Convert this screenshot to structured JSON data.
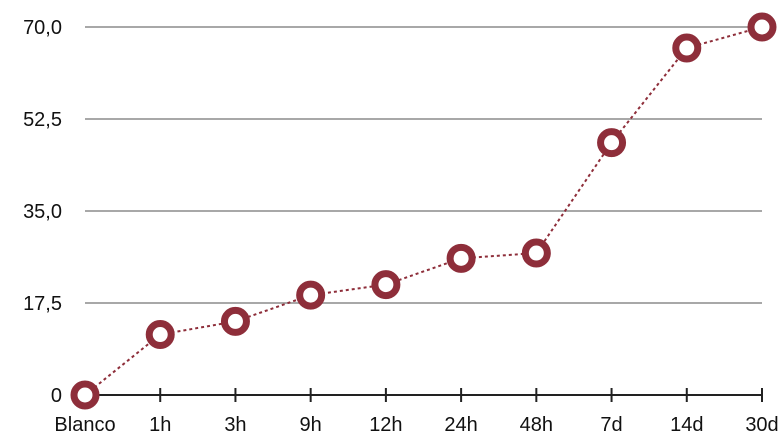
{
  "chart_data": {
    "type": "line",
    "categories": [
      "Blanco",
      "1h",
      "3h",
      "9h",
      "12h",
      "24h",
      "48h",
      "7d",
      "14d",
      "30d"
    ],
    "series": [
      {
        "values": [
          0,
          11.5,
          14,
          19,
          21,
          26,
          27,
          48,
          66,
          70
        ]
      }
    ],
    "y_ticks": [
      "0",
      "17,5",
      "35,0",
      "52,5",
      "70,0"
    ],
    "y_tick_values": [
      0,
      17.5,
      35,
      52.5,
      70
    ],
    "ylim": [
      0,
      70
    ],
    "grid": "horizontal",
    "legend": "none",
    "colors": {
      "line": "#8e2e3a",
      "marker_stroke": "#8e2e3a",
      "marker_fill": "#ffffff",
      "grid": "#a8a8a8",
      "axis": "#222222",
      "text": "#111111"
    }
  }
}
